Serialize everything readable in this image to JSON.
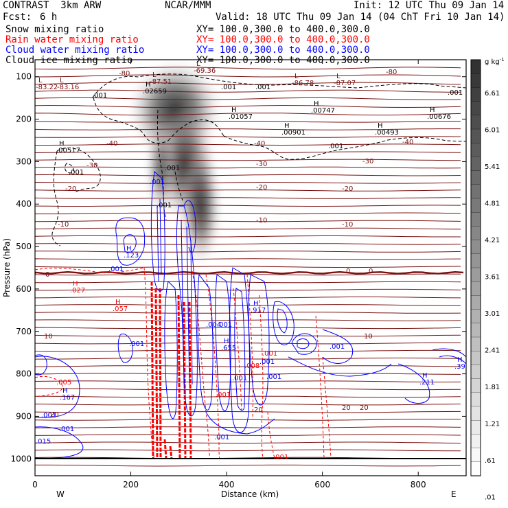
{
  "header": {
    "title": "CONTRAST  3km ARW",
    "center": "NCAR/MMM",
    "init": "Init: 12 UTC Thu 09 Jan 14",
    "fcst_label": "Fcst:",
    "fcst_value": "6 h",
    "valid": "Valid: 18 UTC Thu 09 Jan 14 (04 ChT Fri 10 Jan 14)"
  },
  "legend": [
    {
      "name": "Snow mixing ratio",
      "xy": "XY= 100.0,300.0 to 400.0,300.0",
      "color": "#000000"
    },
    {
      "name": "Rain water mixing ratio",
      "xy": "XY= 100.0,300.0 to 400.0,300.0",
      "color": "#ff0000"
    },
    {
      "name": "Cloud water mixing ratio",
      "xy": "XY= 100.0,300.0 to 400.0,300.0",
      "color": "#0000ff"
    },
    {
      "name": "Cloud ice mixing ratio",
      "xy": "XY= 100.0,300.0 to 400.0,300.0",
      "color": "#000000"
    }
  ],
  "colors": {
    "temperature": "#7a1010",
    "rain": "#ff0000",
    "cloud_water": "#0000ff",
    "ice": "#000000"
  },
  "chart_data": {
    "type": "cross-section",
    "xlabel": "Distance (km)",
    "ylabel": "Pressure (hPa)",
    "xlim": [
      0,
      900
    ],
    "ylim": [
      1040,
      60
    ],
    "x_ticks": [
      0,
      200,
      400,
      600,
      800
    ],
    "y_ticks": [
      100,
      200,
      300,
      400,
      500,
      600,
      700,
      800,
      900,
      1000
    ],
    "x_end_labels": {
      "left": "W",
      "right": "E"
    },
    "colorbar": {
      "unit": "g kg",
      "unit_exp": "-1",
      "ticks": [
        "6.61",
        "6.01",
        "5.41",
        "4.81",
        "4.21",
        "3.61",
        "3.01",
        "2.41",
        "1.81",
        "1.21",
        ".61",
        ".01"
      ]
    },
    "temperature_contours": [
      {
        "value": -80,
        "p": 88
      },
      {
        "value": -40,
        "p": 220
      },
      {
        "value": -30,
        "p": 262
      },
      {
        "value": -20,
        "p": 320
      },
      {
        "value": -10,
        "p": 420
      },
      {
        "value": 0,
        "p": 562
      },
      {
        "value": 10,
        "p": 706
      },
      {
        "value": 20,
        "p": 880
      }
    ],
    "temperature_label_values": [
      "-80",
      "-80",
      "-40",
      "-40",
      "-40",
      "-30",
      "-30",
      "-30",
      "-20",
      "-20",
      "-20",
      "-10",
      "-10",
      "-10",
      "0",
      "0",
      "0",
      "10",
      "10",
      "20",
      "20",
      "20",
      "20"
    ],
    "max_min_labels": [
      {
        "kind": "L",
        "value": "-83.22"
      },
      {
        "kind": "L",
        "value": "-83.16"
      },
      {
        "kind": "L",
        "value": "-87.51"
      },
      {
        "kind": "L",
        "value": "-69.36"
      },
      {
        "kind": "L",
        "value": "-86.78"
      },
      {
        "kind": "L",
        "value": "-87.07"
      },
      {
        "kind": "H",
        "value": ".02659"
      },
      {
        "kind": "H",
        "value": ".01057"
      },
      {
        "kind": "H",
        "value": ".00747"
      },
      {
        "kind": "H",
        "value": ".00676"
      },
      {
        "kind": "H",
        "value": ".00901"
      },
      {
        "kind": "H",
        "value": ".00493"
      },
      {
        "kind": "H",
        "value": ".00517"
      },
      {
        "kind": "H",
        "value": ".123"
      },
      {
        "kind": "H",
        "value": ".027"
      },
      {
        "kind": "H",
        "value": ".057"
      },
      {
        "kind": "H",
        "value": ".917"
      },
      {
        "kind": "H",
        "value": ".655"
      },
      {
        "kind": "H",
        "value": ".167"
      },
      {
        "kind": "H",
        "value": ".211"
      },
      {
        "kind": "H",
        "value": ".39"
      }
    ],
    "ice_labels": [
      ".001",
      ".001",
      ".001",
      ".001",
      ".001",
      ".001",
      ".001",
      ".001"
    ],
    "cloud_labels": [
      ".001",
      ".001",
      ".001",
      ".001",
      ".001",
      ".015",
      ".001",
      ".001",
      ".004",
      ".001",
      ".001",
      ".001",
      ".001"
    ],
    "rain_labels": [
      ".005",
      ".001",
      ".001",
      ".008",
      ".001"
    ]
  }
}
